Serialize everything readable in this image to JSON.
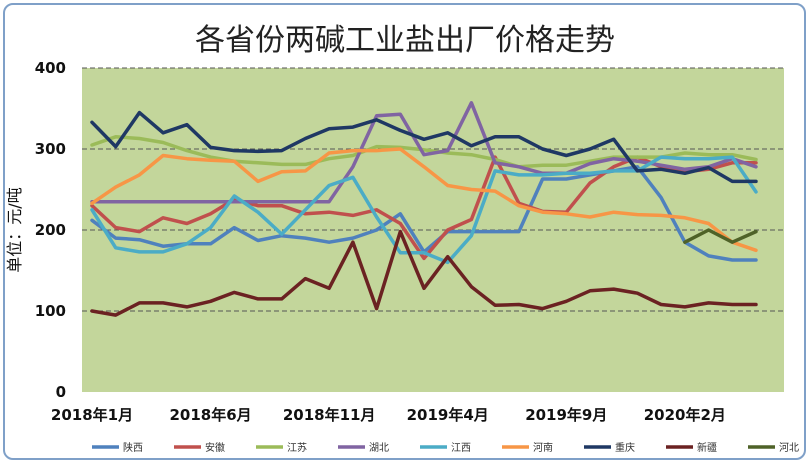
{
  "chart_data": {
    "type": "line",
    "title": "各省份两碱工业盐出厂价格走势",
    "ylabel": "单位：元/吨",
    "xlabel": "",
    "ylim": [
      0,
      400
    ],
    "yticks": [
      0,
      100,
      200,
      300,
      400
    ],
    "grid": "horizontal-dashed",
    "plot_background": "#c3d69b",
    "legend_position": "bottom",
    "x_tick_labels": [
      "2018年1月",
      "2018年6月",
      "2018年11月",
      "2019年4月",
      "2019年9月",
      "2020年2月"
    ],
    "x_tick_indices": [
      0,
      5,
      10,
      15,
      20,
      25
    ],
    "n_points": 29,
    "series": [
      {
        "name": "陕西",
        "color": "#4f81bd",
        "start": 0,
        "values": [
          212,
          190,
          188,
          180,
          183,
          183,
          203,
          187,
          193,
          190,
          185,
          190,
          200,
          220,
          173,
          198,
          198,
          198,
          198,
          263,
          263,
          268,
          273,
          278,
          240,
          185,
          168,
          163,
          163
        ]
      },
      {
        "name": "安徽",
        "color": "#c0504d",
        "start": 0,
        "values": [
          230,
          203,
          198,
          215,
          208,
          220,
          238,
          230,
          230,
          220,
          222,
          218,
          225,
          208,
          165,
          200,
          213,
          290,
          233,
          223,
          222,
          258,
          278,
          290,
          278,
          272,
          275,
          283,
          283
        ]
      },
      {
        "name": "江苏",
        "color": "#9bbb59",
        "start": 0,
        "values": [
          305,
          315,
          313,
          308,
          298,
          290,
          285,
          283,
          281,
          281,
          288,
          292,
          303,
          302,
          299,
          295,
          293,
          287,
          278,
          280,
          280,
          285,
          290,
          290,
          290,
          295,
          293,
          293,
          287
        ]
      },
      {
        "name": "湖北",
        "color": "#8064a2",
        "start": 0,
        "values": [
          235,
          235,
          235,
          235,
          235,
          235,
          235,
          235,
          235,
          235,
          235,
          278,
          341,
          343,
          293,
          298,
          357,
          283,
          278,
          270,
          270,
          282,
          288,
          285,
          280,
          275,
          278,
          288,
          278
        ]
      },
      {
        "name": "江西",
        "color": "#4bacc6",
        "start": 0,
        "values": [
          225,
          178,
          173,
          173,
          183,
          203,
          242,
          222,
          195,
          225,
          255,
          265,
          216,
          172,
          172,
          160,
          193,
          273,
          268,
          268,
          270,
          270,
          273,
          273,
          290,
          288,
          288,
          290,
          247
        ]
      },
      {
        "name": "河南",
        "color": "#f79646",
        "start": 0,
        "values": [
          233,
          253,
          268,
          292,
          288,
          286,
          285,
          260,
          272,
          273,
          295,
          298,
          298,
          300,
          278,
          255,
          250,
          248,
          230,
          222,
          220,
          216,
          222,
          219,
          218,
          215,
          208,
          185,
          175
        ]
      },
      {
        "name": "重庆",
        "color": "#1f3864",
        "start": 0,
        "values": [
          333,
          303,
          345,
          320,
          330,
          302,
          298,
          297,
          298,
          313,
          325,
          327,
          336,
          323,
          312,
          320,
          304,
          315,
          315,
          300,
          292,
          300,
          312,
          273,
          275,
          270,
          277,
          260,
          260
        ]
      },
      {
        "name": "新疆",
        "color": "#6b2222",
        "start": 0,
        "values": [
          100,
          95,
          110,
          110,
          105,
          112,
          123,
          115,
          115,
          140,
          128,
          185,
          103,
          198,
          128,
          167,
          130,
          107,
          108,
          103,
          112,
          125,
          127,
          122,
          108,
          105,
          110,
          108,
          108
        ]
      },
      {
        "name": "河北",
        "color": "#4f6228",
        "start": 25,
        "values": [
          185,
          200,
          185,
          198
        ]
      }
    ]
  }
}
